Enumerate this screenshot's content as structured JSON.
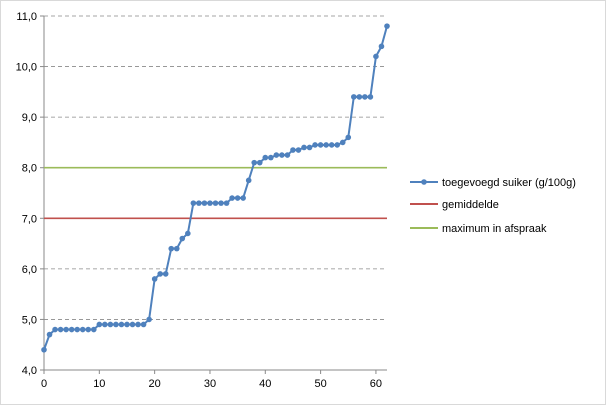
{
  "chart_data": {
    "type": "line",
    "title": "",
    "xlabel": "",
    "ylabel": "",
    "xlim": [
      0,
      62
    ],
    "ylim": [
      4.0,
      11.0
    ],
    "x_ticks": [
      0,
      10,
      20,
      30,
      40,
      50,
      60
    ],
    "y_ticks": [
      4.0,
      5.0,
      6.0,
      7.0,
      8.0,
      9.0,
      10.0,
      11.0
    ],
    "x_tick_labels": [
      "0",
      "10",
      "20",
      "30",
      "40",
      "50",
      "60"
    ],
    "y_tick_labels": [
      "4,0",
      "5,0",
      "6,0",
      "7,0",
      "8,0",
      "9,0",
      "10,0",
      "11,0"
    ],
    "grid": {
      "horizontal": true,
      "style": "dashed"
    },
    "legend_position": "right",
    "series": [
      {
        "name": "toegevoegd suiker (g/100g)",
        "color": "#4f81bd",
        "marker": "circle",
        "x": [
          0,
          1,
          2,
          3,
          4,
          5,
          6,
          7,
          8,
          9,
          10,
          11,
          12,
          13,
          14,
          15,
          16,
          17,
          18,
          19,
          20,
          21,
          22,
          23,
          24,
          25,
          26,
          27,
          28,
          29,
          30,
          31,
          32,
          33,
          34,
          35,
          36,
          37,
          38,
          39,
          40,
          41,
          42,
          43,
          44,
          45,
          46,
          47,
          48,
          49,
          50,
          51,
          52,
          53,
          54,
          55,
          56,
          57,
          58,
          59,
          60,
          61,
          62
        ],
        "y": [
          4.4,
          4.7,
          4.8,
          4.8,
          4.8,
          4.8,
          4.8,
          4.8,
          4.8,
          4.8,
          4.9,
          4.9,
          4.9,
          4.9,
          4.9,
          4.9,
          4.9,
          4.9,
          4.9,
          5.0,
          5.8,
          5.9,
          5.9,
          6.4,
          6.4,
          6.6,
          6.7,
          7.3,
          7.3,
          7.3,
          7.3,
          7.3,
          7.3,
          7.3,
          7.4,
          7.4,
          7.4,
          7.75,
          8.1,
          8.1,
          8.2,
          8.2,
          8.25,
          8.25,
          8.25,
          8.35,
          8.35,
          8.4,
          8.4,
          8.45,
          8.45,
          8.45,
          8.45,
          8.45,
          8.5,
          8.6,
          9.4,
          9.4,
          9.4,
          9.4,
          10.2,
          10.4,
          10.8
        ]
      },
      {
        "name": "gemiddelde",
        "color": "#c0504d",
        "marker": "none",
        "x": [
          0,
          62
        ],
        "y": [
          7.0,
          7.0
        ]
      },
      {
        "name": "maximum in afspraak",
        "color": "#9bbb59",
        "marker": "none",
        "x": [
          0,
          62
        ],
        "y": [
          8.0,
          8.0
        ]
      }
    ]
  }
}
